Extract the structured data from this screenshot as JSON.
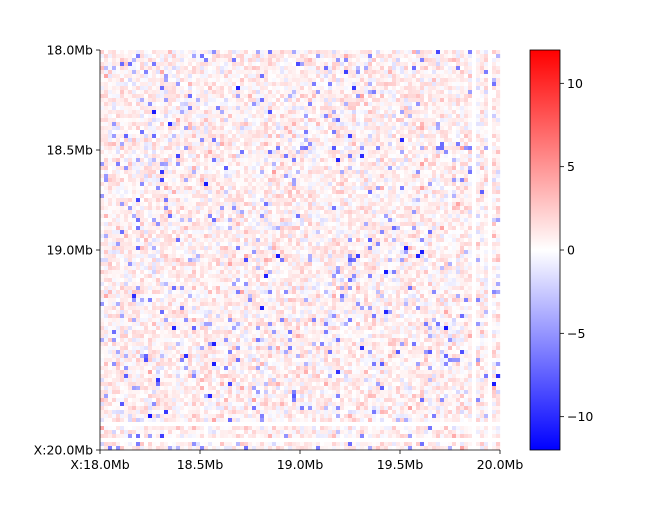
{
  "chart_data": {
    "type": "heatmap",
    "title": "",
    "xlabel": "",
    "ylabel": "",
    "x_range_mb": [
      18.0,
      20.0
    ],
    "y_range_mb": [
      18.0,
      20.0
    ],
    "x_ticks": [
      {
        "value": 18.0,
        "label": "X:18.0Mb"
      },
      {
        "value": 18.5,
        "label": "18.5Mb"
      },
      {
        "value": 19.0,
        "label": "19.0Mb"
      },
      {
        "value": 19.5,
        "label": "19.5Mb"
      },
      {
        "value": 20.0,
        "label": "20.0Mb"
      }
    ],
    "y_ticks": [
      {
        "value": 18.0,
        "label": "18.0Mb"
      },
      {
        "value": 18.5,
        "label": "18.5Mb"
      },
      {
        "value": 19.0,
        "label": "19.0Mb"
      },
      {
        "value": 20.0,
        "label": "X:20.0Mb"
      }
    ],
    "y_inverted": true,
    "bins": 100,
    "value_distribution": {
      "mean": 0.6,
      "sd": 1.0,
      "min": -12,
      "max": 12
    },
    "empty_bins": [
      93,
      97
    ],
    "colormap": {
      "name": "bwr",
      "min_color": "#0000ff",
      "mid_color": "#ffffff",
      "max_color": "#ff0000"
    },
    "colorbar": {
      "vmin": -12,
      "vmax": 12,
      "ticks": [
        {
          "value": 10,
          "label": "10"
        },
        {
          "value": 5,
          "label": "5"
        },
        {
          "value": 0,
          "label": "0"
        },
        {
          "value": -5,
          "label": "−5"
        },
        {
          "value": -10,
          "label": "−10"
        }
      ]
    },
    "grid": false,
    "legend": "none"
  }
}
